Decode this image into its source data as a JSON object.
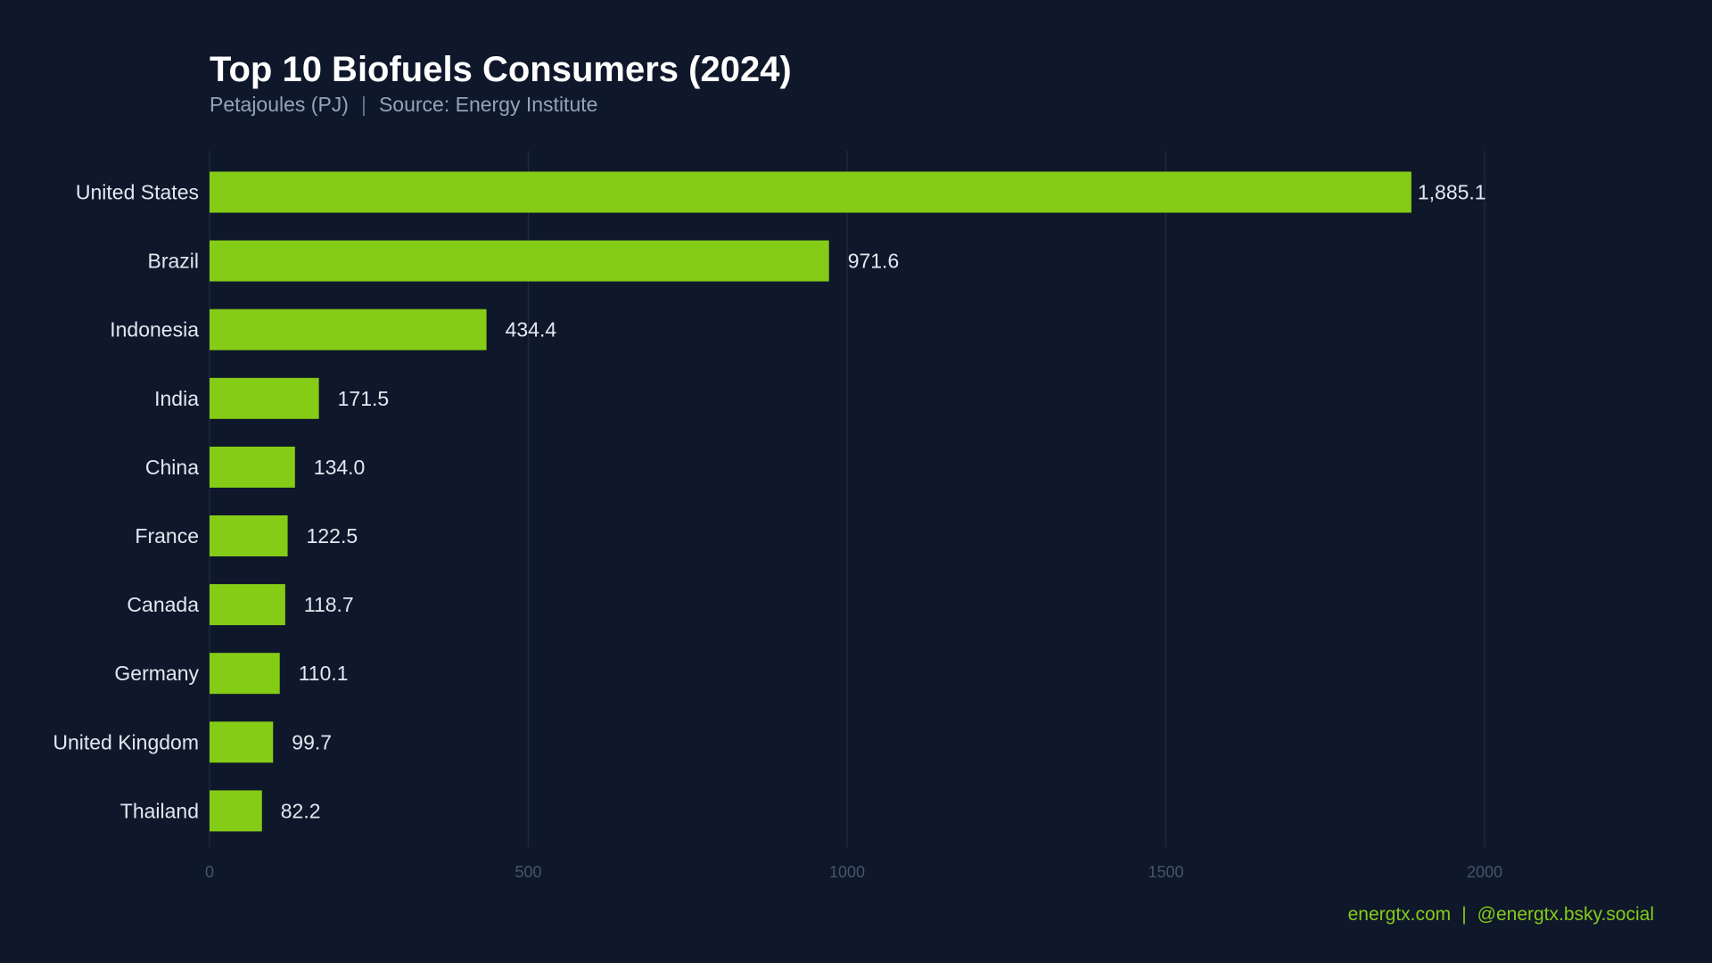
{
  "colors": {
    "background": "#0f172a",
    "bar": "#84cc16",
    "grid": "#1e293b",
    "label": "#e2e8f0",
    "tick": "#475569",
    "footer": "#84cc16"
  },
  "chart_data": {
    "type": "bar",
    "orientation": "horizontal",
    "title": "Top 10 Biofuels Consumers (2024)",
    "subtitle_unit": "Petajoules (PJ)",
    "subtitle_source": "Source: Energy Institute",
    "categories": [
      "United States",
      "Brazil",
      "Indonesia",
      "India",
      "China",
      "France",
      "Canada",
      "Germany",
      "United Kingdom",
      "Thailand"
    ],
    "values": [
      1885.1,
      971.6,
      434.4,
      171.5,
      134.0,
      122.5,
      118.7,
      110.1,
      99.7,
      82.2
    ],
    "data_labels": [
      "1,885.1",
      "971.6",
      "434.4",
      "171.5",
      "134.0",
      "122.5",
      "118.7",
      "110.1",
      "99.7",
      "82.2"
    ],
    "xlim": [
      0,
      2300
    ],
    "xticks": [
      0,
      500,
      1000,
      1500,
      2000
    ],
    "xlabel": "",
    "ylabel": "",
    "grid": "vertical"
  },
  "footer": {
    "website": "energtx.com",
    "social": "@energtx.bsky.social"
  }
}
